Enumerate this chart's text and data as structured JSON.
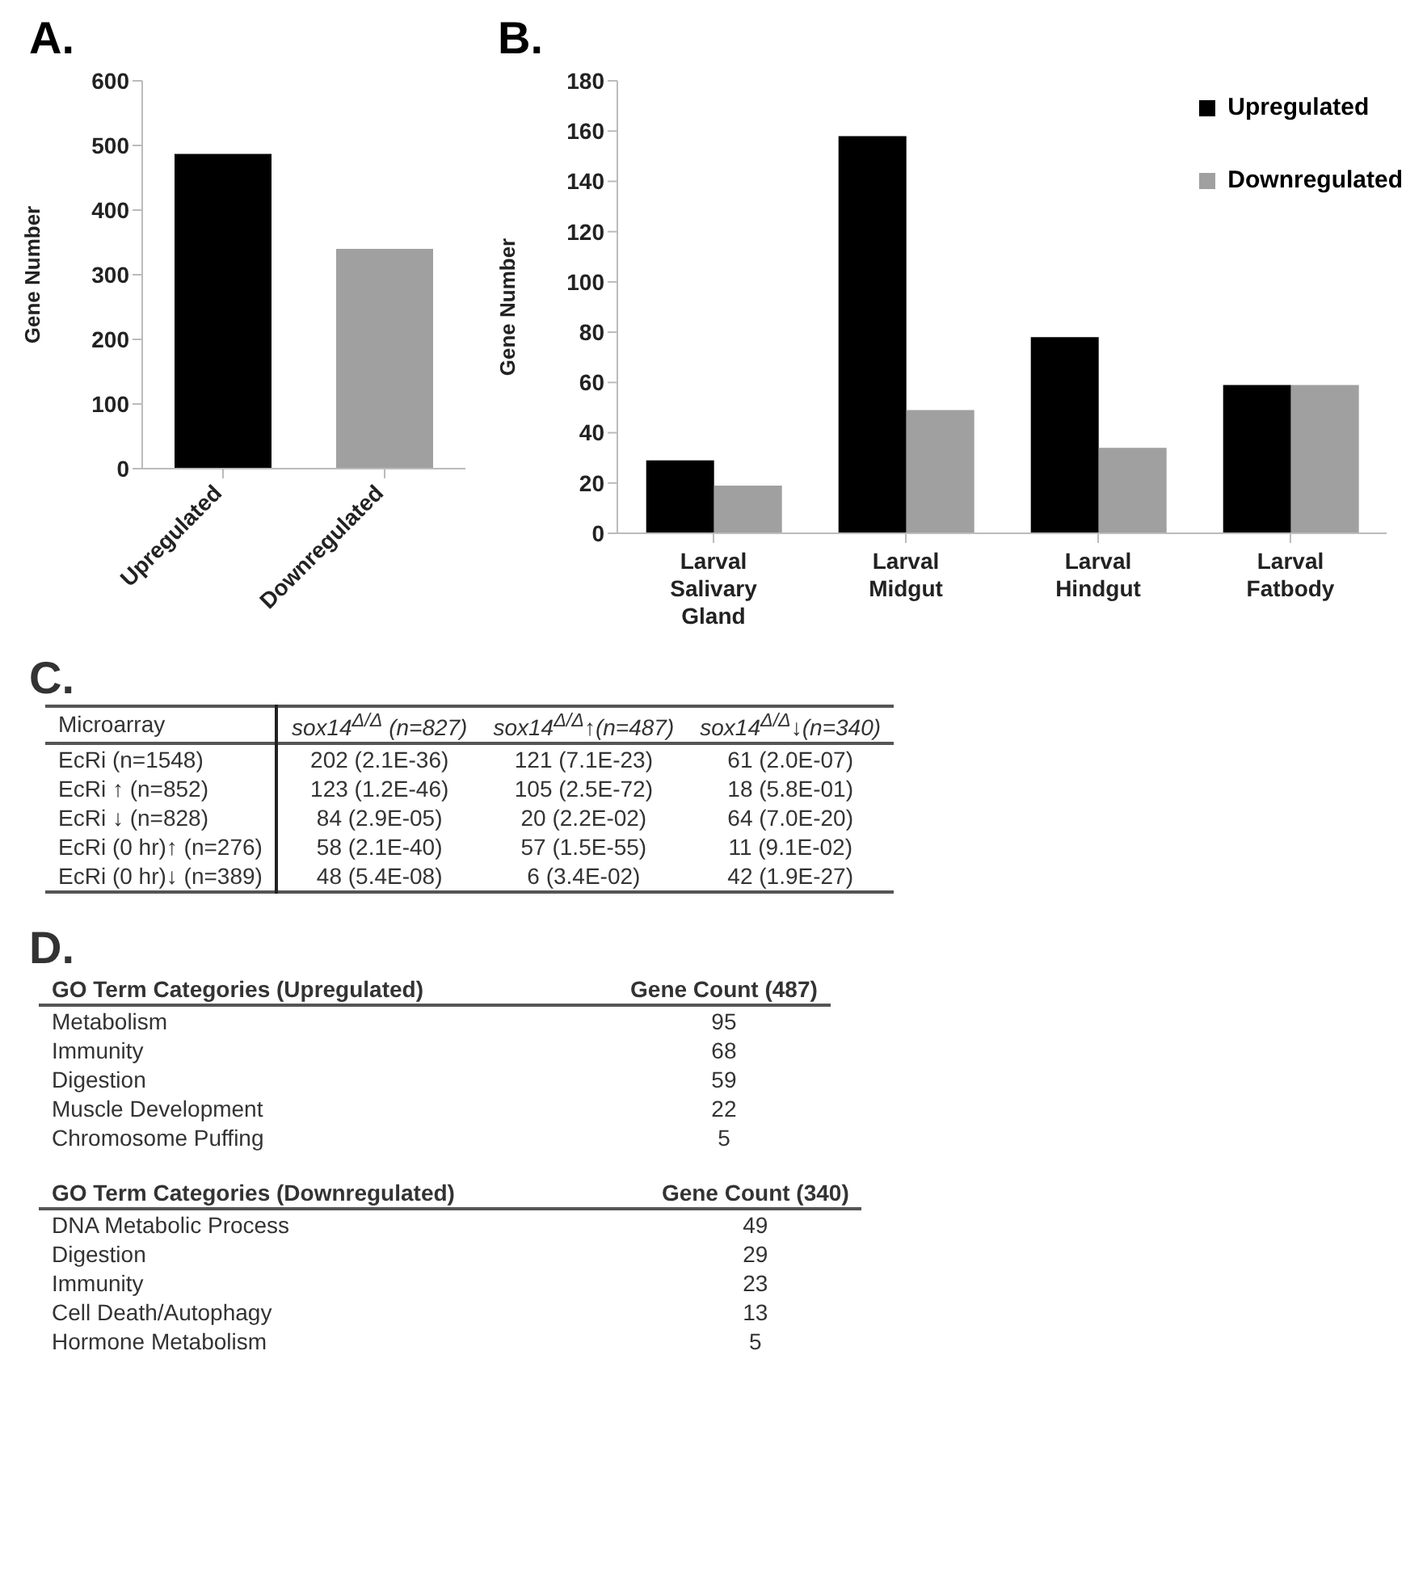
{
  "chart_data": [
    {
      "type": "bar",
      "title": "A.",
      "ylabel": "Gene Number",
      "categories": [
        "Upregulated",
        "Downregulated"
      ],
      "values": [
        487,
        340
      ],
      "colors": [
        "#000000",
        "#a0a0a0"
      ],
      "ylim": [
        0,
        600
      ],
      "yticks": [
        0,
        100,
        200,
        300,
        400,
        500,
        600
      ]
    },
    {
      "type": "bar",
      "title": "B.",
      "ylabel": "Gene Number",
      "categories": [
        "Larval Salivary Gland",
        "Larval Midgut",
        "Larval Hindgut",
        "Larval Fatbody"
      ],
      "series": [
        {
          "name": "Upregulated",
          "color": "#000000",
          "values": [
            29,
            158,
            78,
            59
          ]
        },
        {
          "name": "Downregulated",
          "color": "#a0a0a0",
          "values": [
            19,
            49,
            34,
            59
          ]
        }
      ],
      "ylim": [
        0,
        180
      ],
      "yticks": [
        0,
        20,
        40,
        60,
        80,
        100,
        120,
        140,
        160,
        180
      ],
      "legend": "top right"
    },
    {
      "type": "other",
      "title": "C.",
      "categories": [
        "Microarray",
        "sox14$^{Δ/Δ}$ (n=827)",
        "sox14$^{Δ/Δ}$↑(n=487)",
        "sox14$^{Δ/Δ}$↓(n=340)"
      ],
      "cell_labels": [
        [
          "EcRi (n=1548)",
          "202 (2.1E-36)",
          "121 (7.1E-23)",
          "61 (2.0E-07)"
        ],
        [
          "EcRi ↑ (n=852)",
          "123 (1.2E-46)",
          "105 (2.5E-72)",
          "18 (5.8E-01)"
        ],
        [
          "EcRi ↓ (n=828)",
          "84 (2.9E-05)",
          "20 (2.2E-02)",
          "64 (7.0E-20)"
        ],
        [
          "EcRi (0 hr)↑ (n=276)",
          "58 (2.1E-40)",
          "57 (1.5E-55)",
          "11 (9.1E-02)"
        ],
        [
          "EcRi (0 hr)↓ (n=389)",
          "48 (5.4E-08)",
          "6 (3.4E-02)",
          "42 (1.9E-27)"
        ]
      ]
    },
    {
      "type": "other",
      "title": "D.",
      "categories": [
        "GO Term Categories (Upregulated)",
        "Gene Count (487)"
      ],
      "cell_labels": [
        [
          "Metabolism",
          "95"
        ],
        [
          "Immunity",
          "68"
        ],
        [
          "Digestion",
          "59"
        ],
        [
          "Muscle Development",
          "22"
        ],
        [
          "Chromosome Puffing",
          "5"
        ]
      ]
    },
    {
      "type": "other",
      "categories": [
        "GO Term Categories (Downregulated)",
        "Gene Count (340)"
      ],
      "cell_labels": [
        [
          "DNA Metabolic Process",
          "49"
        ],
        [
          "Digestion",
          "29"
        ],
        [
          "Immunity",
          "23"
        ],
        [
          "Cell Death/Autophagy",
          "13"
        ],
        [
          "Hormone Metabolism",
          "5"
        ]
      ]
    }
  ]
}
